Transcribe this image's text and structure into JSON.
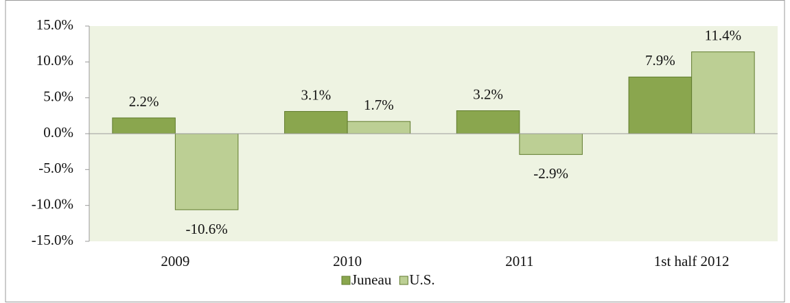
{
  "chart_data": {
    "type": "bar",
    "categories": [
      "2009",
      "2010",
      "2011",
      "1st half 2012"
    ],
    "series": [
      {
        "name": "Juneau",
        "color": "#8aa64e",
        "values": [
          2.2,
          3.1,
          3.2,
          7.9
        ],
        "value_labels": [
          "2.2%",
          "3.1%",
          "3.2%",
          "7.9%"
        ]
      },
      {
        "name": "U.S.",
        "color": "#bccf94",
        "values": [
          -10.6,
          1.7,
          -2.9,
          11.4
        ],
        "value_labels": [
          "-10.6%",
          "1.7%",
          "-2.9%",
          "11.4%"
        ]
      }
    ],
    "ylim": [
      -15,
      15
    ],
    "yticks": [
      {
        "value": -15,
        "label": "-15.0%"
      },
      {
        "value": -10,
        "label": "-10.0%"
      },
      {
        "value": -5,
        "label": "-5.0%"
      },
      {
        "value": 0,
        "label": "0.0%"
      },
      {
        "value": 5,
        "label": "5.0%"
      },
      {
        "value": 10,
        "label": "10.0%"
      },
      {
        "value": 15,
        "label": "15.0%"
      }
    ],
    "legend": "bottom"
  }
}
